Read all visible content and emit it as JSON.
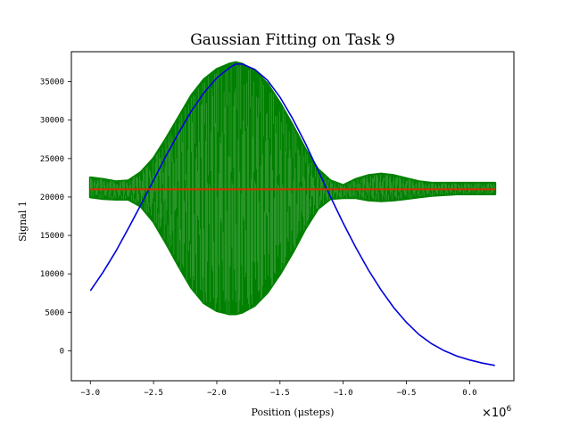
{
  "chart_data": {
    "type": "line",
    "title": "Gaussian Fitting on Task 9",
    "xlabel": "Position (μsteps)",
    "ylabel": "Signal 1",
    "x_offset_label": "×10",
    "x_offset_exp": "6",
    "xlim": [
      -3.15,
      0.35
    ],
    "ylim": [
      -3900,
      38900
    ],
    "xticks": [
      -3.0,
      -2.5,
      -2.0,
      -1.5,
      -1.0,
      -0.5,
      0.0
    ],
    "xtick_labels": [
      "−3.0",
      "−2.5",
      "−2.0",
      "−1.5",
      "−1.0",
      "−0.5",
      "0.0"
    ],
    "yticks": [
      0,
      5000,
      10000,
      15000,
      20000,
      25000,
      30000,
      35000
    ],
    "ytick_labels": [
      "0",
      "5000",
      "10000",
      "15000",
      "20000",
      "25000",
      "30000",
      "35000"
    ],
    "grid": false,
    "colors": {
      "data": "#008000",
      "fit": "#0000dd",
      "mean": "#cc3300"
    },
    "series": [
      {
        "kind": "band",
        "x": [
          -3.0,
          -2.9,
          -2.8,
          -2.7,
          -2.6,
          -2.5,
          -2.4,
          -2.3,
          -2.2,
          -2.1,
          -2.0,
          -1.9,
          -1.85,
          -1.8,
          -1.7,
          -1.6,
          -1.5,
          -1.4,
          -1.3,
          -1.2,
          -1.1,
          -1.0,
          -0.9,
          -0.8,
          -0.7,
          -0.6,
          -0.5,
          -0.4,
          -0.3,
          -0.2,
          -0.1,
          0.0,
          0.1,
          0.2
        ],
        "upper": [
          22500,
          22300,
          22000,
          22100,
          23200,
          25000,
          27600,
          30400,
          33200,
          35300,
          36600,
          37300,
          37500,
          37300,
          36400,
          34700,
          32200,
          29300,
          26200,
          23600,
          22100,
          21500,
          22300,
          22800,
          23000,
          22800,
          22400,
          22000,
          21800,
          21800,
          21800,
          21800,
          21800,
          21800
        ],
        "lower": [
          20000,
          19800,
          19700,
          19700,
          18800,
          16800,
          14000,
          11000,
          8200,
          6200,
          5200,
          4800,
          4800,
          5000,
          5900,
          7600,
          10000,
          12800,
          15900,
          18500,
          19800,
          19900,
          19900,
          19600,
          19500,
          19600,
          19800,
          20000,
          20200,
          20300,
          20400,
          20400,
          20400,
          20400
        ]
      },
      {
        "kind": "fit",
        "x": [
          -3.0,
          -2.9,
          -2.8,
          -2.7,
          -2.6,
          -2.5,
          -2.4,
          -2.3,
          -2.2,
          -2.1,
          -2.0,
          -1.9,
          -1.85,
          -1.8,
          -1.7,
          -1.6,
          -1.5,
          -1.4,
          -1.3,
          -1.2,
          -1.1,
          -1.0,
          -0.9,
          -0.8,
          -0.7,
          -0.6,
          -0.5,
          -0.4,
          -0.3,
          -0.2,
          -0.1,
          0.0,
          0.1,
          0.2
        ],
        "y": [
          7800,
          10200,
          12900,
          15900,
          19000,
          22200,
          25400,
          28400,
          31200,
          33600,
          35500,
          36800,
          37300,
          37300,
          36600,
          35200,
          33000,
          30200,
          27000,
          23500,
          20000,
          16600,
          13400,
          10500,
          7900,
          5600,
          3700,
          2100,
          900,
          0,
          -700,
          -1200,
          -1600,
          -1900
        ]
      },
      {
        "kind": "mean",
        "x": [
          -3.0,
          0.2
        ],
        "y": [
          21000,
          21000
        ]
      }
    ]
  }
}
